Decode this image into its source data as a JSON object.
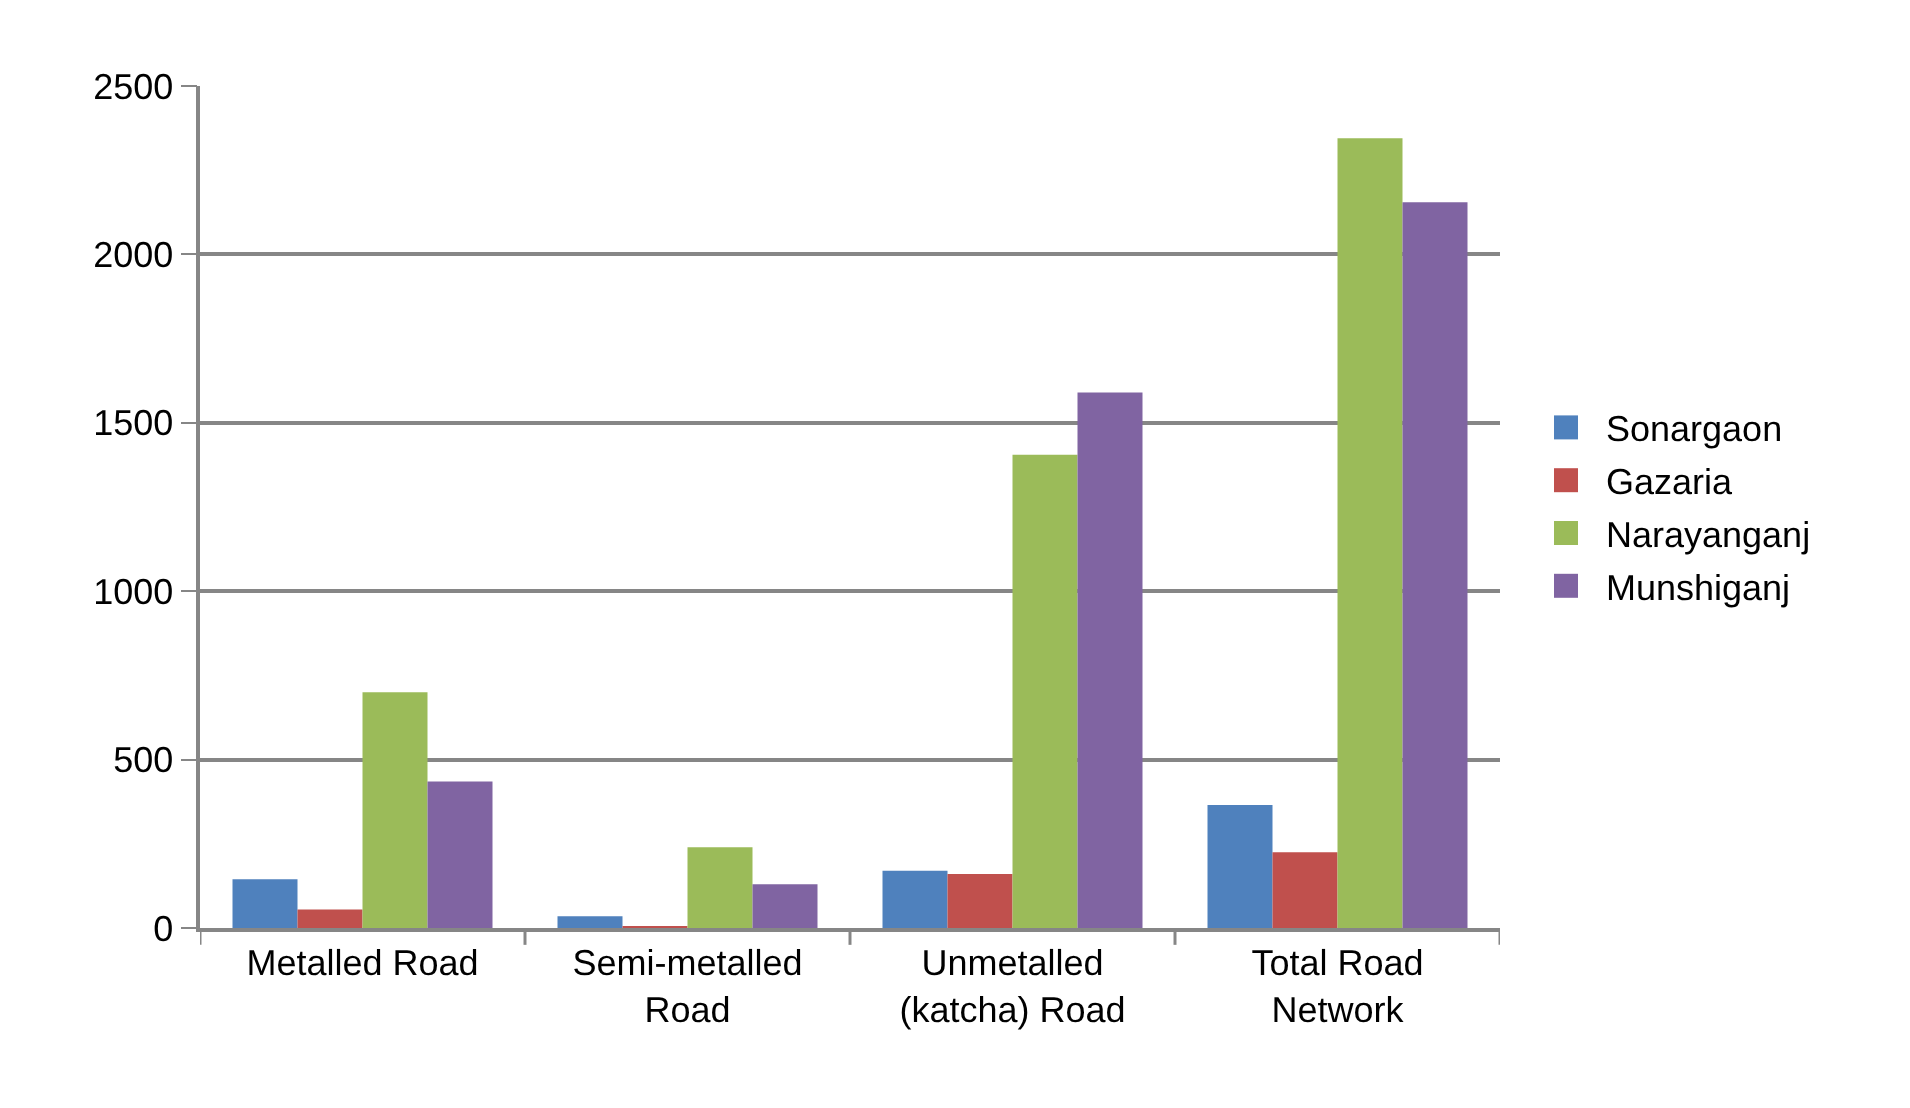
{
  "chart_data": {
    "type": "bar",
    "categories": [
      "Metalled Road",
      "Semi-metalled Road",
      "Unmetalled (katcha) Road",
      "Total Road Network"
    ],
    "series": [
      {
        "name": "Sonargaon",
        "color": "#4f81bd",
        "values": [
          145,
          35,
          170,
          365
        ]
      },
      {
        "name": "Gazaria",
        "color": "#c0504d",
        "values": [
          55,
          5,
          160,
          225
        ]
      },
      {
        "name": "Narayanganj",
        "color": "#9bbb59",
        "values": [
          700,
          240,
          1405,
          2345
        ]
      },
      {
        "name": "Munshiganj",
        "color": "#8064a2",
        "values": [
          435,
          130,
          1590,
          2155
        ]
      }
    ],
    "ylim": [
      0,
      2500
    ],
    "yticks": [
      0,
      500,
      1000,
      1500,
      2000,
      2500
    ],
    "grid": "y",
    "legend": "right"
  }
}
